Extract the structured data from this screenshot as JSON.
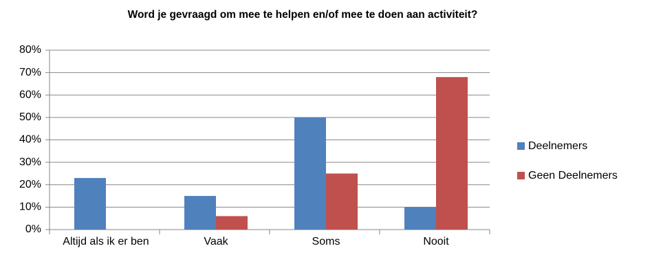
{
  "chart_data": {
    "type": "bar",
    "title": "Word je gevraagd om mee te helpen en/of mee te doen aan activiteit?",
    "categories": [
      "Altijd als ik er ben",
      "Vaak",
      "Soms",
      "Nooit"
    ],
    "series": [
      {
        "name": "Deelnemers",
        "color": "#4f81bd",
        "values": [
          23,
          15,
          50,
          10
        ]
      },
      {
        "name": "Geen Deelnemers",
        "color": "#c0504d",
        "values": [
          0,
          6,
          25,
          68
        ]
      }
    ],
    "ylim": [
      0,
      80
    ],
    "yticks": [
      {
        "value": 0,
        "label": "0%"
      },
      {
        "value": 10,
        "label": "10%"
      },
      {
        "value": 20,
        "label": "20%"
      },
      {
        "value": 30,
        "label": "30%"
      },
      {
        "value": 40,
        "label": "40%"
      },
      {
        "value": 50,
        "label": "50%"
      },
      {
        "value": 60,
        "label": "60%"
      },
      {
        "value": 70,
        "label": "70%"
      },
      {
        "value": 80,
        "label": "80%"
      }
    ],
    "grid": true,
    "legend": "right"
  }
}
